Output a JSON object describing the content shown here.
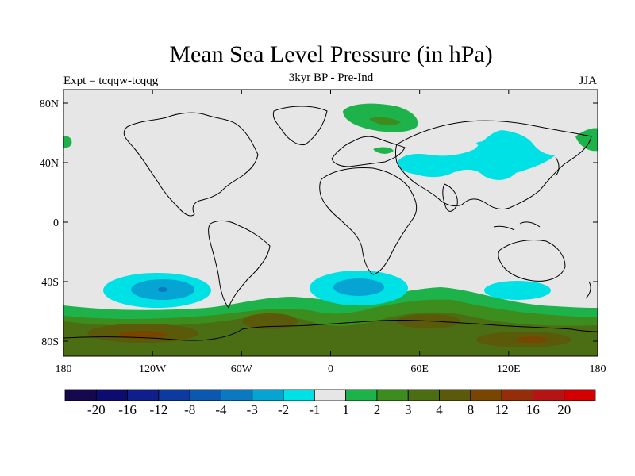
{
  "title": "Mean Sea Level Pressure (in hPa)",
  "subtitle": "3kyr BP - Pre-Ind",
  "left_label": "Expt = tcqqw-tcqqg",
  "right_label": "JJA",
  "background_color": "#e6e6e6",
  "lat_ticks": [
    "80N",
    "40N",
    "0",
    "40S",
    "80S"
  ],
  "lon_ticks": [
    "180",
    "120W",
    "60W",
    "0",
    "60E",
    "120E",
    "180"
  ],
  "colorbar": {
    "colors": [
      "#15084f",
      "#0c0c70",
      "#0e1e8c",
      "#0d3aa0",
      "#0a58b0",
      "#0b78c2",
      "#05a4d2",
      "#00e1e6",
      "#e6e6e6",
      "#1eb24a",
      "#3c8c1e",
      "#4b6e14",
      "#5a5a0a",
      "#784600",
      "#962d0a",
      "#b41414",
      "#d20000"
    ],
    "labels": [
      "-20",
      "-16",
      "-12",
      "-8",
      "-4",
      "-3",
      "-2",
      "-1",
      "1",
      "2",
      "3",
      "4",
      "8",
      "12",
      "16",
      "20"
    ]
  },
  "map_colors": {
    "neg_light": "#00e1e6",
    "neg_mid": "#05a4d2",
    "neg_dark": "#0b78c2",
    "pos_light": "#1eb24a",
    "pos_mid": "#3c8c1e",
    "pos_dark": "#4b6e14",
    "pos_brown": "#5a5a0a",
    "pos_red": "#784600"
  }
}
